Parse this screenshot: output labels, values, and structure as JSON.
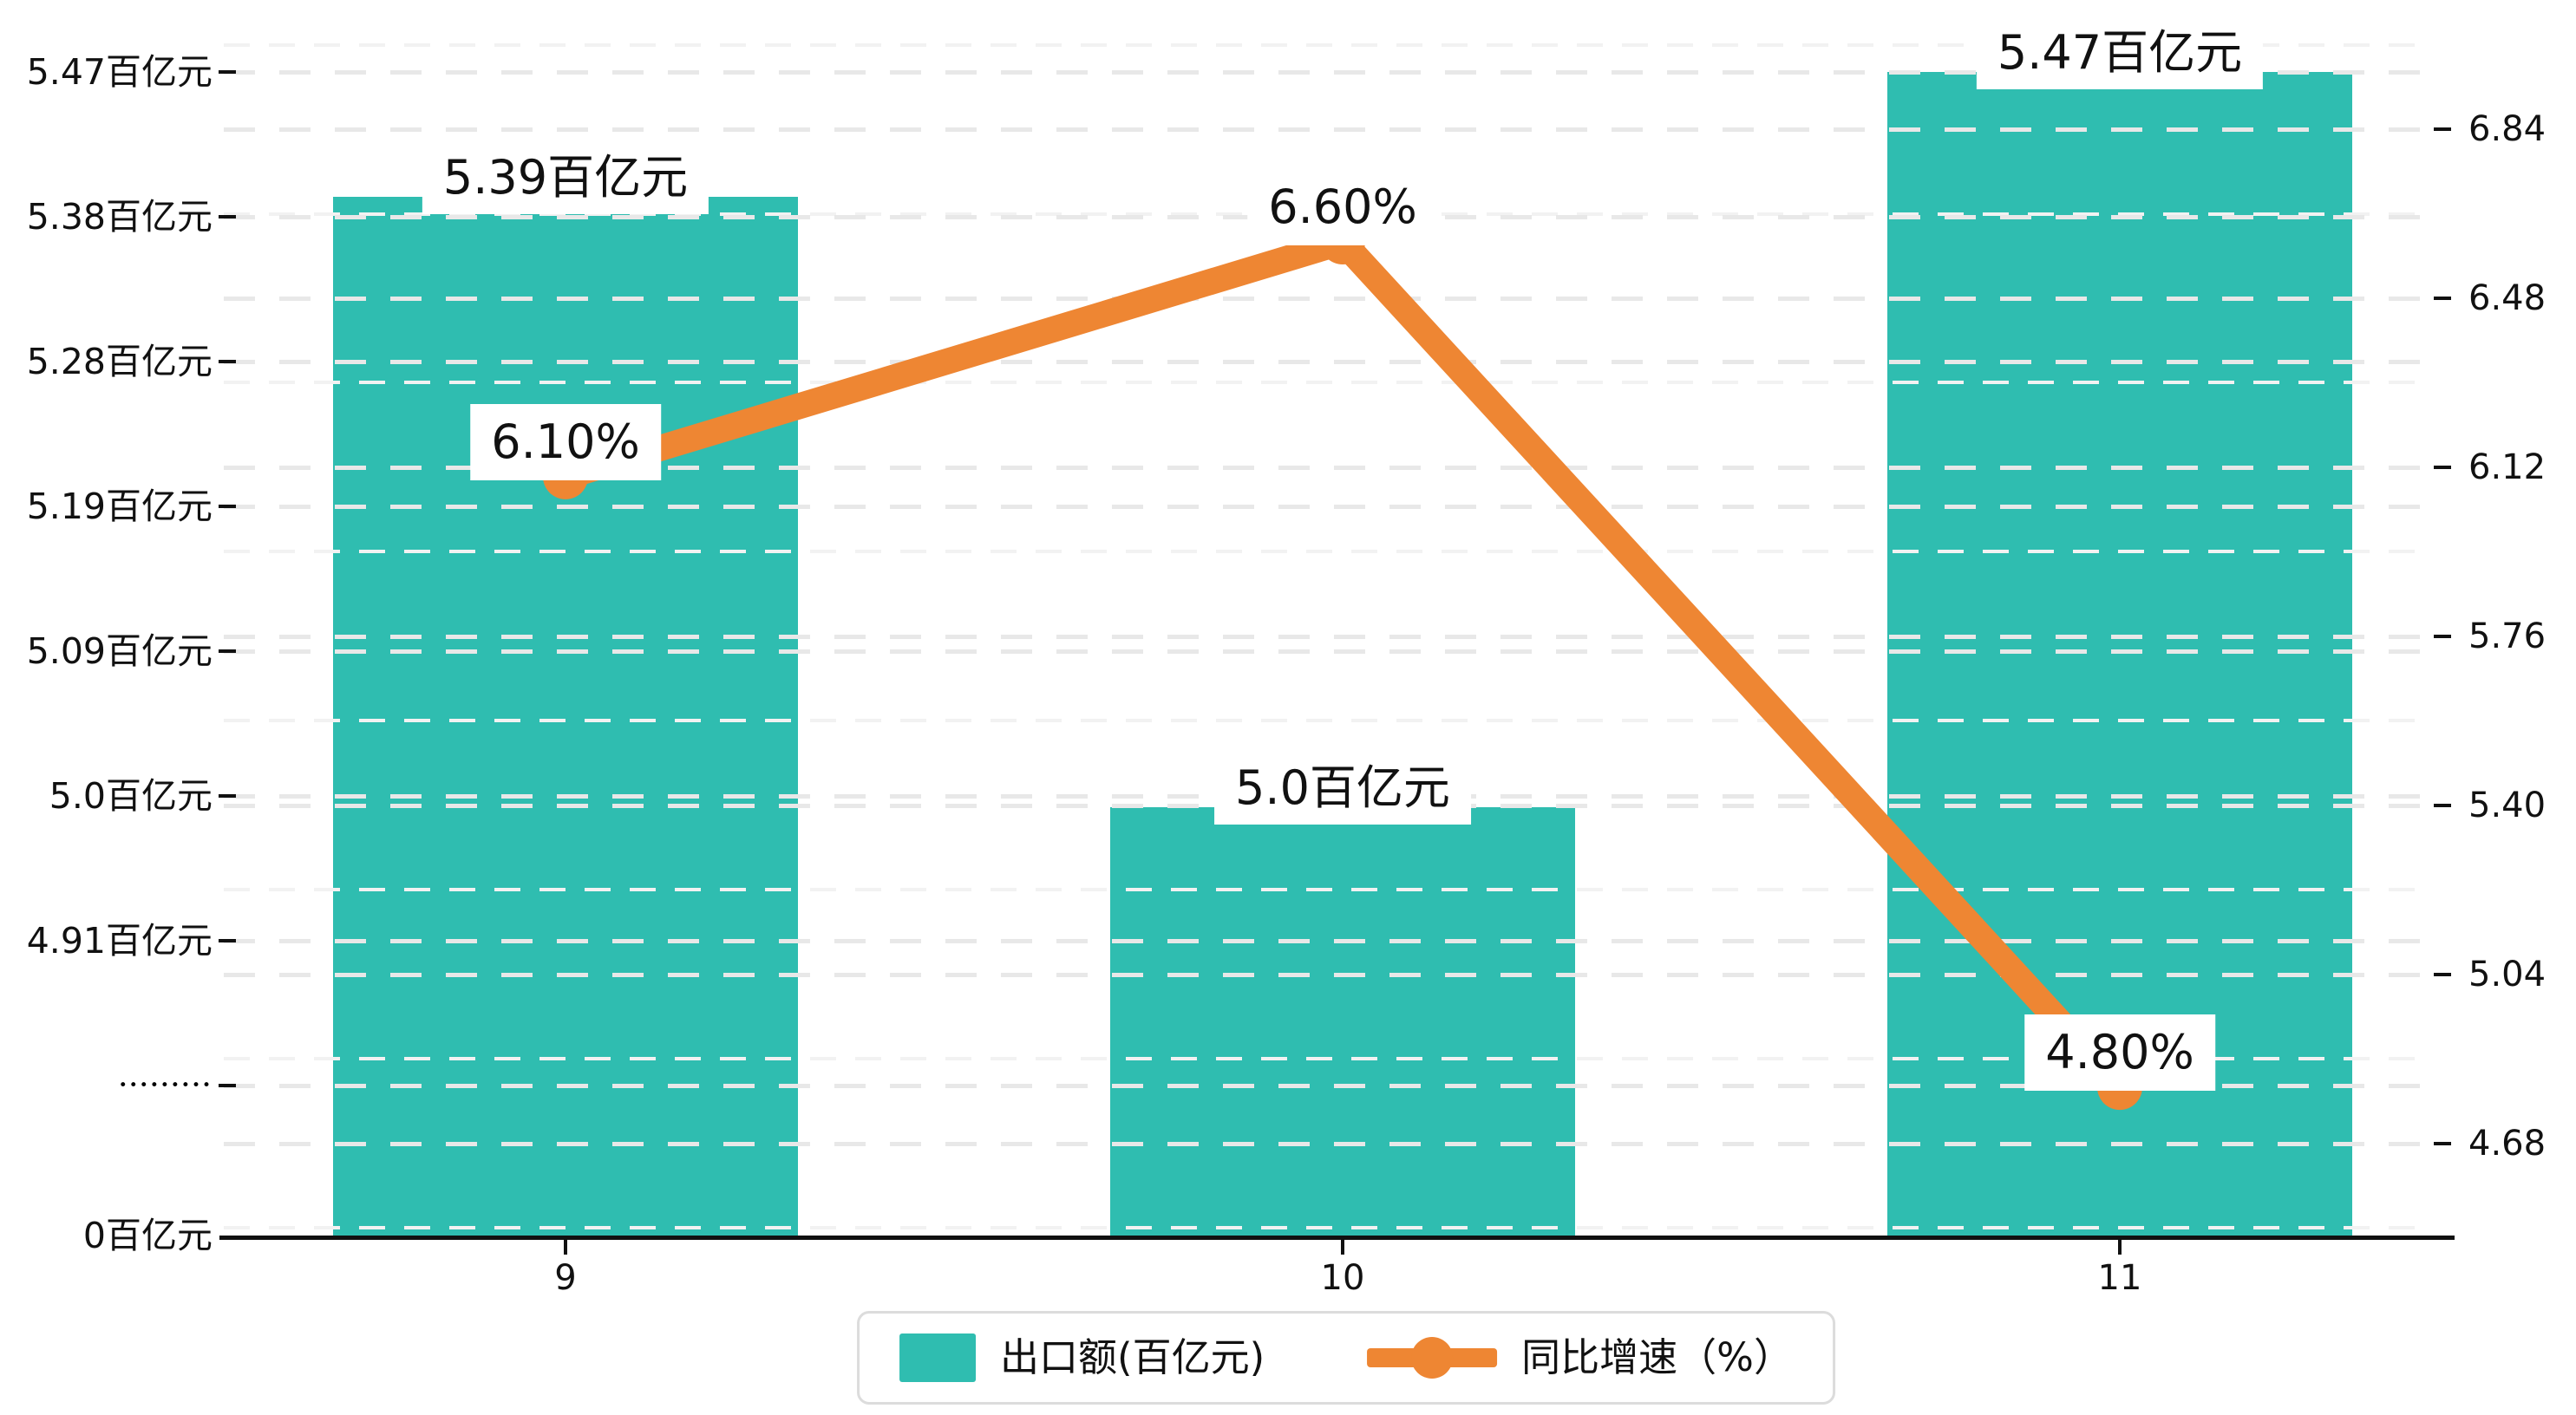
{
  "chart_data": {
    "type": "bar",
    "categories": [
      "9",
      "10",
      "11"
    ],
    "series": [
      {
        "name": "出口额(百亿元)",
        "type": "bar",
        "values": [
          5.39,
          5.0,
          5.47
        ],
        "labels": [
          "5.39百亿元",
          "5.0百亿元",
          "5.47百亿元"
        ]
      },
      {
        "name": "同比增速（%）",
        "type": "line",
        "values": [
          6.1,
          6.6,
          4.8
        ],
        "labels": [
          "6.10%",
          "6.60%",
          "4.80%"
        ]
      }
    ],
    "left_axis": {
      "unit": "百亿元",
      "ticks": [
        "5.47百亿元",
        "5.38百亿元",
        "5.28百亿元",
        "5.19百亿元",
        "5.09百亿元",
        "5.0百亿元",
        "4.91百亿元",
        "•••••••••",
        "0百亿元"
      ],
      "break_marker": "•••••••••",
      "max": 5.47
    },
    "right_axis": {
      "ticks": [
        "6.84",
        "6.48",
        "6.12",
        "5.76",
        "5.40",
        "5.04",
        "4.68"
      ],
      "min": 4.68,
      "max": 6.84,
      "step": 0.36
    },
    "legend": {
      "position": "bottom",
      "items": [
        {
          "label": "出口额(百亿元)",
          "swatch": "bar"
        },
        {
          "label": "同比增速（%）",
          "swatch": "line-marker"
        }
      ]
    },
    "grid": "dashed horizontal, major + minor",
    "colors": {
      "bar": "#2fbdb0",
      "line": "#ee8633",
      "grid_major": "#e8e8e8",
      "grid_minor": "#f2f2f2",
      "axis": "#111111",
      "label_bg": "#ffffff",
      "text": "#111111"
    }
  }
}
